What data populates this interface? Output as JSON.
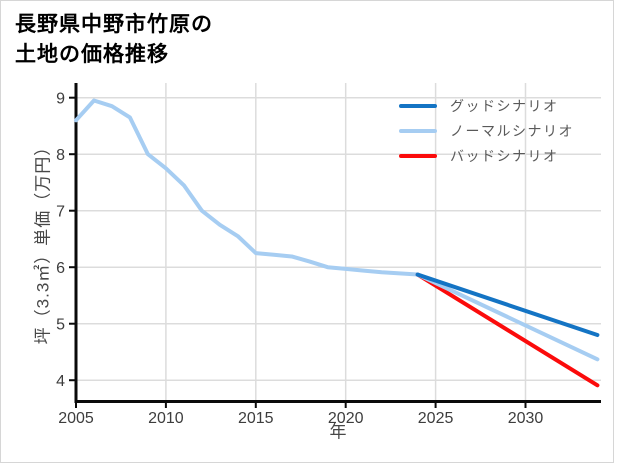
{
  "header": {
    "title_line1": "長野県中野市竹原の",
    "title_line2": "土地の価格推移"
  },
  "chart_data": {
    "type": "line",
    "title": "長野県中野市竹原の土地の価格推移",
    "xlabel": "年",
    "ylabel": "坪（3.3㎡）単価（万円）",
    "xlim": [
      2005,
      2034.2
    ],
    "ylim": [
      3.65,
      9.26
    ],
    "x_ticks": [
      2005,
      2010,
      2015,
      2020,
      2025,
      2030
    ],
    "y_ticks": [
      4,
      5,
      6,
      7,
      8,
      9
    ],
    "grid": true,
    "grid_color": "#dcdcdc",
    "axis_color": "#0a0a0a",
    "tick_label_color": "#3d3d3d",
    "legend_position": "top-right",
    "history": {
      "color": "#a6cdf2",
      "years": [
        2005,
        2006,
        2007,
        2008,
        2009,
        2010,
        2011,
        2012,
        2013,
        2014,
        2015,
        2016,
        2017,
        2018,
        2019,
        2020,
        2021,
        2022,
        2023,
        2024
      ],
      "values": [
        8.6,
        8.95,
        8.85,
        8.65,
        8.0,
        7.75,
        7.45,
        7.0,
        6.75,
        6.55,
        6.25,
        6.22,
        6.19,
        6.1,
        6.0,
        5.97,
        5.94,
        5.91,
        5.89,
        5.87
      ]
    },
    "scenarios": [
      {
        "label": "グッドシナリオ",
        "color": "#1474c4",
        "years": [
          2024,
          2034
        ],
        "values": [
          5.87,
          4.8
        ]
      },
      {
        "label": "ノーマルシナリオ",
        "color": "#a6cdf2",
        "years": [
          2024,
          2034
        ],
        "values": [
          5.87,
          4.37
        ]
      },
      {
        "label": "バッドシナリオ",
        "color": "#fb0b0b",
        "years": [
          2024,
          2034
        ],
        "values": [
          5.87,
          3.91
        ]
      }
    ]
  }
}
